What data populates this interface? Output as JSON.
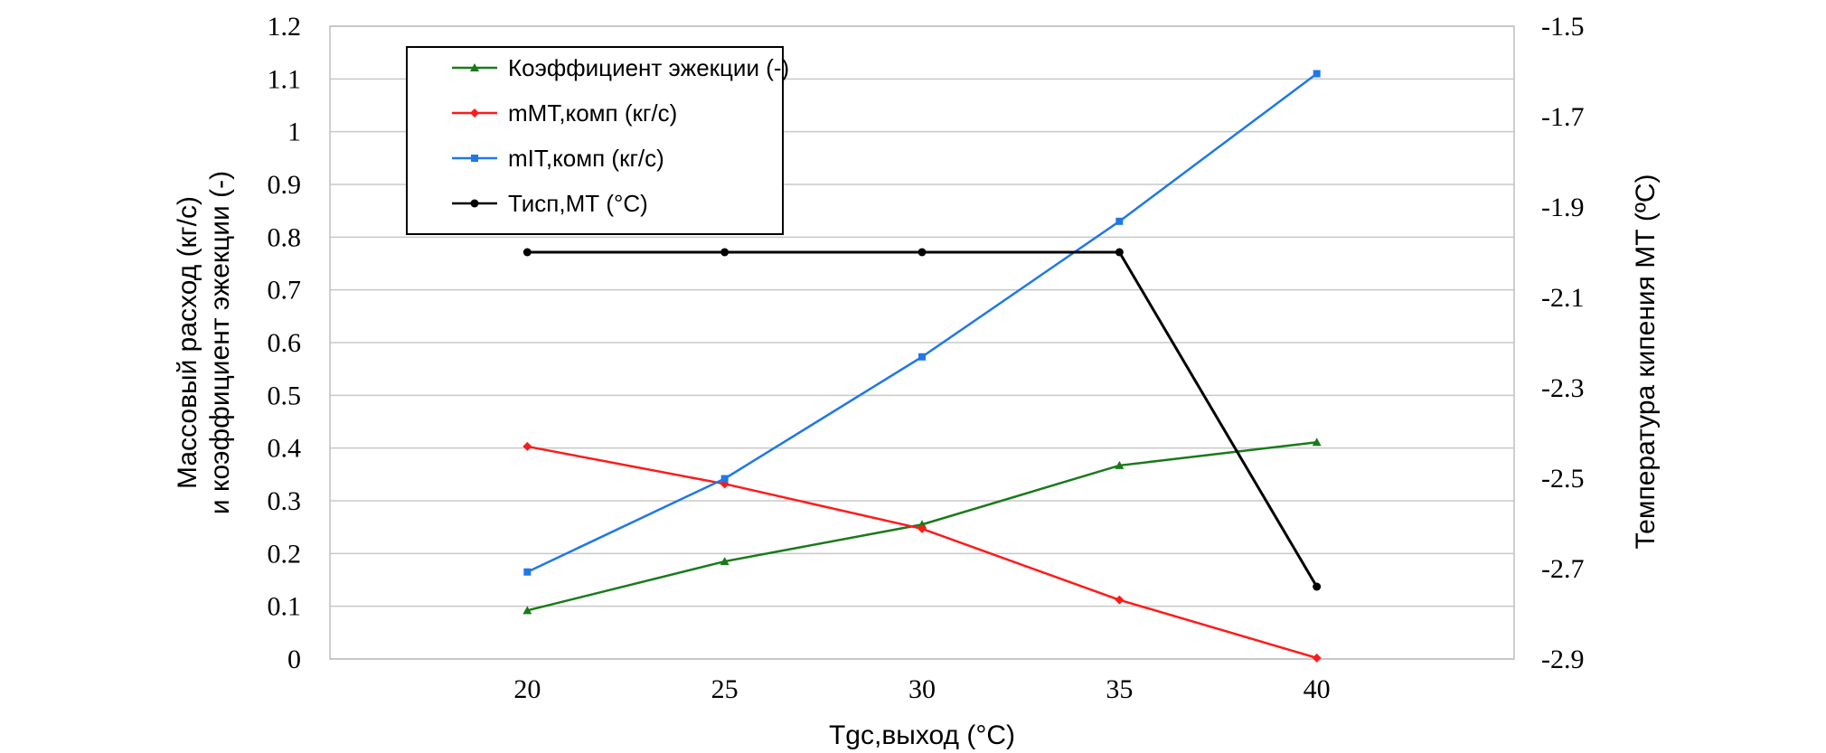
{
  "chart_data": {
    "type": "line",
    "x": [
      20,
      25,
      30,
      35,
      40
    ],
    "xlabel": "Tgc,выход (°C)",
    "ylabel_left_line1": "Массовый расход (кг/с)",
    "ylabel_left_line2": "и коэффициент эжекции (-)",
    "ylabel_right": "Температура кипения МТ (ºC)",
    "ylim_left": [
      0,
      1.2
    ],
    "ylim_right": [
      -2.9,
      -1.5
    ],
    "xlim": [
      15,
      45
    ],
    "x_ticks": [
      "20",
      "25",
      "30",
      "35",
      "40"
    ],
    "y_left_ticks": [
      "0",
      "0.1",
      "0.2",
      "0.3",
      "0.4",
      "0.5",
      "0.6",
      "0.7",
      "0.8",
      "0.9",
      "1",
      "1.1",
      "1.2"
    ],
    "y_left_tick_values": [
      0,
      0.1,
      0.2,
      0.3,
      0.4,
      0.5,
      0.6,
      0.7,
      0.8,
      0.9,
      1.0,
      1.1,
      1.2
    ],
    "y_right_ticks": [
      "-2.9",
      "-2.7",
      "-2.5",
      "-2.3",
      "-2.1",
      "-1.9",
      "-1.7",
      "-1.5"
    ],
    "y_right_tick_values": [
      -2.9,
      -2.7,
      -2.5,
      -2.3,
      -2.1,
      -1.9,
      -1.7,
      -1.5
    ],
    "legend_position": "top-left",
    "grid": true,
    "series": [
      {
        "name": "Коэффициент эжекции (-)",
        "axis": "left",
        "color": "#1a7a1a",
        "marker": "triangle",
        "values": [
          0.092,
          0.185,
          0.255,
          0.367,
          0.411
        ]
      },
      {
        "name": "mMT,комп (кг/с)",
        "axis": "left",
        "color": "#ff1a1a",
        "marker": "diamond",
        "values": [
          0.403,
          0.332,
          0.247,
          0.112,
          0.002
        ]
      },
      {
        "name": "mIT,комп (кг/с)",
        "axis": "left",
        "color": "#1f78e6",
        "marker": "square",
        "values": [
          0.165,
          0.342,
          0.573,
          0.83,
          1.11
        ]
      },
      {
        "name": "Тисп,МТ (°C)",
        "axis": "right",
        "color": "#000000",
        "marker": "circle",
        "values": [
          -2.0,
          -2.0,
          -2.0,
          -2.0,
          -2.74
        ]
      }
    ]
  }
}
